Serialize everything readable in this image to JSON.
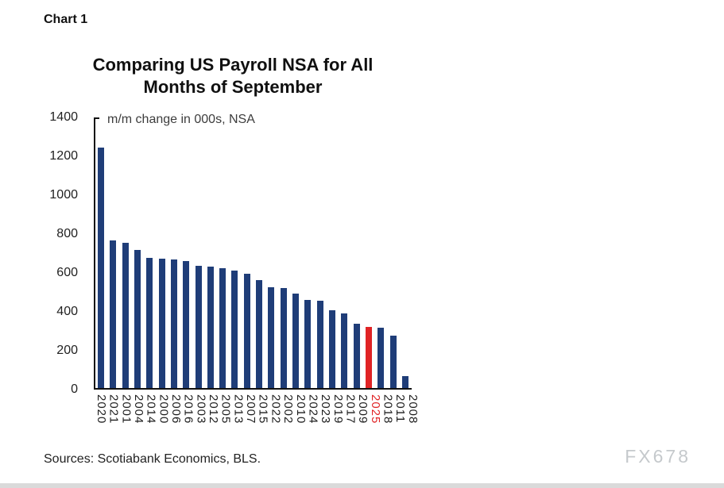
{
  "page": {
    "chart_label": "Chart 1",
    "sources": "Sources: Scotiabank Economics, BLS.",
    "watermark": "FX678"
  },
  "chart_data": {
    "type": "bar",
    "title": "Comparing US Payroll NSA for All Months of September",
    "title_line1": "Comparing US Payroll NSA for All",
    "title_line2": "Months of September",
    "annotation": "m/m change in 000s, NSA",
    "categories": [
      "2020",
      "2021",
      "2001",
      "2004",
      "2014",
      "2000",
      "2006",
      "2016",
      "2003",
      "2012",
      "2005",
      "2013",
      "2007",
      "2015",
      "2022",
      "2002",
      "2010",
      "2024",
      "2023",
      "2019",
      "2017",
      "2009",
      "2025",
      "2018",
      "2011",
      "2008"
    ],
    "values": [
      1235,
      760,
      748,
      712,
      670,
      665,
      663,
      655,
      630,
      625,
      617,
      604,
      589,
      557,
      520,
      514,
      487,
      455,
      449,
      400,
      385,
      330,
      313,
      309,
      269,
      60
    ],
    "highlight_category": "2025",
    "bar_color": "#1f3d78",
    "highlight_color": "#e02325",
    "xlabel": "",
    "ylabel": "",
    "ylim": [
      0,
      1400
    ],
    "yticks": [
      1400,
      1200,
      1000,
      800,
      600,
      400,
      200,
      0
    ],
    "grid": false,
    "legend": false
  }
}
